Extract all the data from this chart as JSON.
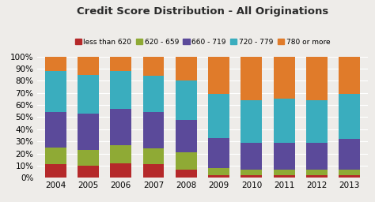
{
  "title": "Credit Score Distribution - All Originations",
  "years": [
    2004,
    2005,
    2006,
    2007,
    2008,
    2009,
    2010,
    2011,
    2012,
    2013
  ],
  "categories": [
    "less than 620",
    "620 - 659",
    "660 - 719",
    "720 - 779",
    "780 or more"
  ],
  "colors": [
    "#b5292a",
    "#8faa35",
    "#5b4a9a",
    "#3aadbe",
    "#e07b2a"
  ],
  "data": {
    "less than 620": [
      11,
      10,
      12,
      11,
      7,
      2,
      2,
      2,
      2,
      2
    ],
    "620 - 659": [
      14,
      13,
      15,
      13,
      14,
      6,
      5,
      5,
      5,
      5
    ],
    "660 - 719": [
      29,
      30,
      30,
      30,
      27,
      25,
      22,
      22,
      22,
      25
    ],
    "720 - 779": [
      34,
      32,
      31,
      30,
      32,
      36,
      35,
      36,
      35,
      37
    ],
    "780 or more": [
      12,
      15,
      12,
      16,
      20,
      31,
      36,
      35,
      36,
      31
    ]
  },
  "ylim": [
    0,
    100
  ],
  "ytick_labels": [
    "0%",
    "10%",
    "20%",
    "30%",
    "40%",
    "50%",
    "60%",
    "70%",
    "80%",
    "90%",
    "100%"
  ],
  "background_color": "#eeece9",
  "bar_width": 0.65,
  "legend_fontsize": 6.5,
  "title_fontsize": 9.5,
  "tick_fontsize": 7.5
}
